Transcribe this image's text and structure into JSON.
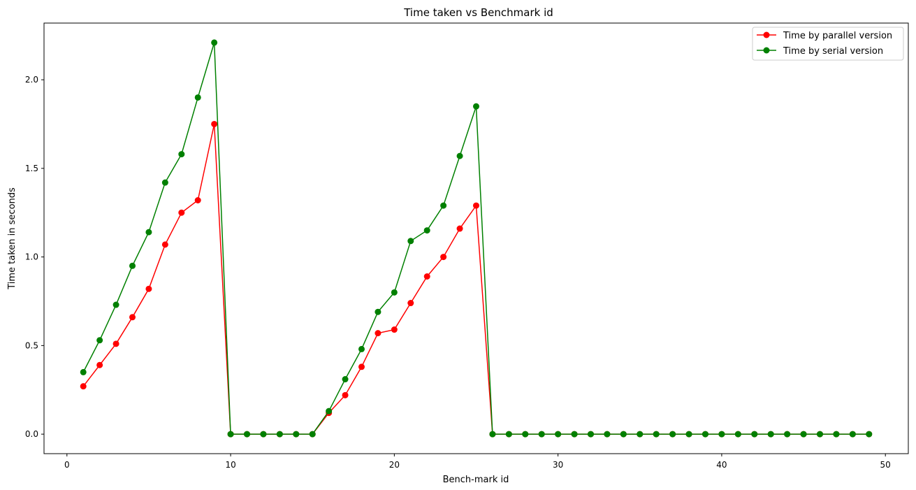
{
  "chart_data": {
    "type": "line",
    "title": "Time taken vs Benchmark id",
    "xlabel": "Bench-mark id",
    "ylabel": "Time taken in seconds",
    "xlim": [
      -1.4,
      51.4
    ],
    "ylim": [
      -0.11,
      2.32
    ],
    "xticks": [
      0,
      10,
      20,
      30,
      40,
      50
    ],
    "yticks": [
      0.0,
      0.5,
      1.0,
      1.5,
      2.0
    ],
    "xtick_labels": [
      "0",
      "10",
      "20",
      "30",
      "40",
      "50"
    ],
    "ytick_labels": [
      "0.0",
      "0.5",
      "1.0",
      "1.5",
      "2.0"
    ],
    "grid": false,
    "legend_position": "top-right",
    "x": [
      1,
      2,
      3,
      4,
      5,
      6,
      7,
      8,
      9,
      10,
      11,
      12,
      13,
      14,
      15,
      16,
      17,
      18,
      19,
      20,
      21,
      22,
      23,
      24,
      25,
      26,
      27,
      28,
      29,
      30,
      31,
      32,
      33,
      34,
      35,
      36,
      37,
      38,
      39,
      40,
      41,
      42,
      43,
      44,
      45,
      46,
      47,
      48,
      49
    ],
    "series": [
      {
        "name": "Time by parallel version",
        "color": "#ff0000",
        "values": [
          0.27,
          0.39,
          0.51,
          0.66,
          0.82,
          1.07,
          1.25,
          1.32,
          1.75,
          0.0,
          0.0,
          0.0,
          0.0,
          0.0,
          0.0,
          0.12,
          0.22,
          0.38,
          0.57,
          0.59,
          0.74,
          0.89,
          1.0,
          1.16,
          1.29,
          0.0,
          0.0,
          0.0,
          0.0,
          0.0,
          0.0,
          0.0,
          0.0,
          0.0,
          0.0,
          0.0,
          0.0,
          0.0,
          0.0,
          0.0,
          0.0,
          0.0,
          0.0,
          0.0,
          0.0,
          0.0,
          0.0,
          0.0,
          0.0
        ]
      },
      {
        "name": "Time by serial version",
        "color": "#008000",
        "values": [
          0.35,
          0.53,
          0.73,
          0.95,
          1.14,
          1.42,
          1.58,
          1.9,
          2.21,
          0.0,
          0.0,
          0.0,
          0.0,
          0.0,
          0.0,
          0.13,
          0.31,
          0.48,
          0.69,
          0.8,
          1.09,
          1.15,
          1.29,
          1.57,
          1.85,
          0.0,
          0.0,
          0.0,
          0.0,
          0.0,
          0.0,
          0.0,
          0.0,
          0.0,
          0.0,
          0.0,
          0.0,
          0.0,
          0.0,
          0.0,
          0.0,
          0.0,
          0.0,
          0.0,
          0.0,
          0.0,
          0.0,
          0.0,
          0.0
        ]
      }
    ]
  }
}
